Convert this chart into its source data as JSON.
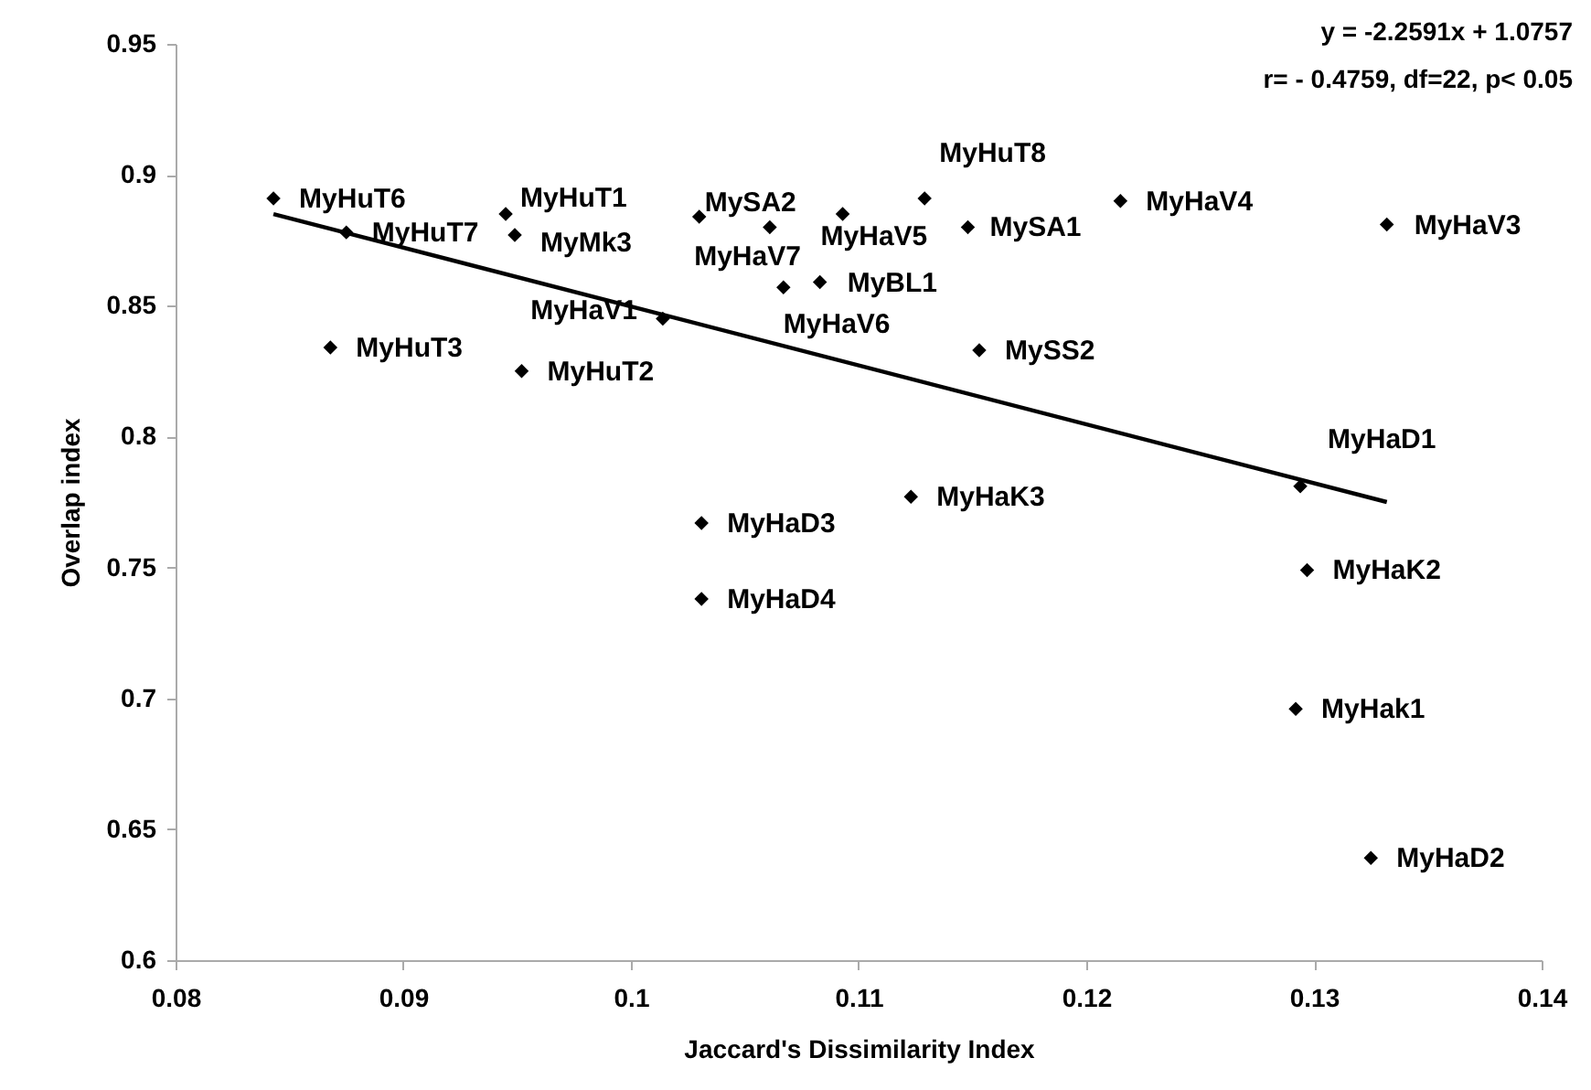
{
  "chart_data": {
    "type": "scatter",
    "xlabel": "Jaccard's Dissimilarity Index",
    "ylabel": "Overlap index",
    "xlim": [
      0.08,
      0.14
    ],
    "xticks": [
      0.08,
      0.09,
      0.1,
      0.11,
      0.12,
      0.13,
      0.14
    ],
    "ylim": [
      0.6,
      0.95
    ],
    "yticks": [
      0.6,
      0.65,
      0.7,
      0.75,
      0.8,
      0.85,
      0.9,
      0.95
    ],
    "series": [
      {
        "marker": "diamond",
        "color": "#000000",
        "x": [
          0.0843,
          0.0875,
          0.0945,
          0.0949,
          0.0868,
          0.0952,
          0.1014,
          0.103,
          0.1061,
          0.1093,
          0.1067,
          0.1083,
          0.1129,
          0.1148,
          0.1215,
          0.1332,
          0.1153,
          0.1294,
          0.1123,
          0.1297,
          0.1292,
          0.1325,
          0.1031,
          0.1031
        ],
        "values": [
          0.891,
          0.878,
          0.885,
          0.877,
          0.834,
          0.825,
          0.845,
          0.884,
          0.88,
          0.885,
          0.857,
          0.859,
          0.891,
          0.88,
          0.89,
          0.881,
          0.833,
          0.781,
          0.777,
          0.749,
          0.696,
          0.639,
          0.767,
          0.738
        ]
      },
      {
        "type": "line",
        "color": "#000000",
        "x": [
          0.0843,
          0.1332
        ],
        "values": [
          0.885,
          0.775
        ]
      }
    ],
    "annotations": [
      "y = -2.2591x + 1.0757",
      "r= - 0.4759, df=22, p< 0.05",
      {
        "text": "MyHuT6",
        "x": 0.0843,
        "y": 0.891
      },
      {
        "text": "MyHuT7",
        "x": 0.0875,
        "y": 0.878
      },
      {
        "text": "MyHuT1",
        "x": 0.0945,
        "y": 0.885
      },
      {
        "text": "MyMk3",
        "x": 0.0949,
        "y": 0.877
      },
      {
        "text": "MyHuT3",
        "x": 0.0868,
        "y": 0.834
      },
      {
        "text": "MyHuT2",
        "x": 0.0952,
        "y": 0.825
      },
      {
        "text": "MyHaV1",
        "x": 0.1014,
        "y": 0.845
      },
      {
        "text": "MySA2",
        "x": 0.103,
        "y": 0.884
      },
      {
        "text": "MyHaV7",
        "x": 0.1061,
        "y": 0.88
      },
      {
        "text": "MyHaV5",
        "x": 0.1093,
        "y": 0.885
      },
      {
        "text": "MyHaV6",
        "x": 0.1067,
        "y": 0.857
      },
      {
        "text": "MyBL1",
        "x": 0.1083,
        "y": 0.859
      },
      {
        "text": "MyHuT8",
        "x": 0.1129,
        "y": 0.891
      },
      {
        "text": "MySA1",
        "x": 0.1148,
        "y": 0.88
      },
      {
        "text": "MyHaV4",
        "x": 0.1215,
        "y": 0.89
      },
      {
        "text": "MyHaV3",
        "x": 0.1332,
        "y": 0.881
      },
      {
        "text": "MySS2",
        "x": 0.1153,
        "y": 0.833
      },
      {
        "text": "MyHaD1",
        "x": 0.1294,
        "y": 0.781
      },
      {
        "text": "MyHaK3",
        "x": 0.1123,
        "y": 0.777
      },
      {
        "text": "MyHaK2",
        "x": 0.1297,
        "y": 0.749
      },
      {
        "text": "MyHak1",
        "x": 0.1292,
        "y": 0.696
      },
      {
        "text": "MyHaD2",
        "x": 0.1325,
        "y": 0.639
      },
      {
        "text": "MyHaD3",
        "x": 0.1031,
        "y": 0.767
      },
      {
        "text": "MyHaD4",
        "x": 0.1031,
        "y": 0.738
      }
    ]
  }
}
